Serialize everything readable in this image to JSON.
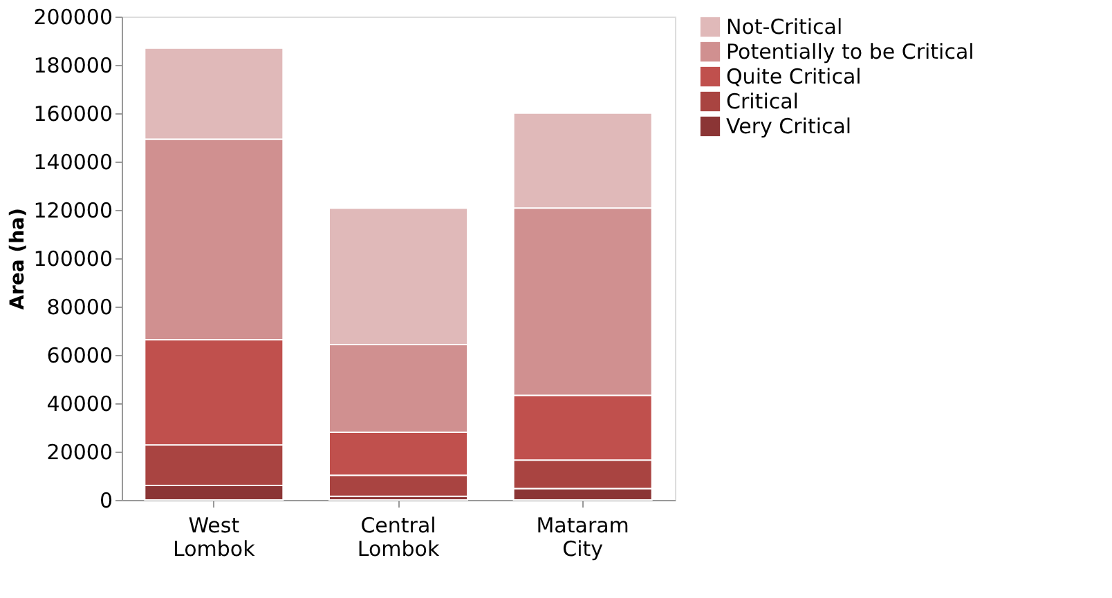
{
  "chart_data": {
    "type": "bar",
    "stacked": true,
    "ylabel": "Area (ha)",
    "categories": [
      "West Lombok",
      "Central Lombok",
      "Mataram City"
    ],
    "series": [
      {
        "name": "Very Critical",
        "color": "#8b3535",
        "values": [
          6000,
          1500,
          4700
        ]
      },
      {
        "name": "Critical",
        "color": "#a94441",
        "values": [
          16800,
          8700,
          11800
        ]
      },
      {
        "name": "Quite Critical",
        "color": "#c0504d",
        "values": [
          43500,
          17800,
          26800
        ]
      },
      {
        "name": "Potentially to be Critical",
        "color": "#d09090",
        "values": [
          83000,
          36300,
          77500
        ]
      },
      {
        "name": "Not-Critical",
        "color": "#e0b9b9",
        "values": [
          37600,
          56400,
          39300
        ]
      }
    ],
    "ylim": [
      0,
      200000
    ],
    "yticks": [
      0,
      20000,
      40000,
      60000,
      80000,
      100000,
      120000,
      140000,
      160000,
      180000,
      200000
    ],
    "grid": false,
    "legend": "right"
  }
}
